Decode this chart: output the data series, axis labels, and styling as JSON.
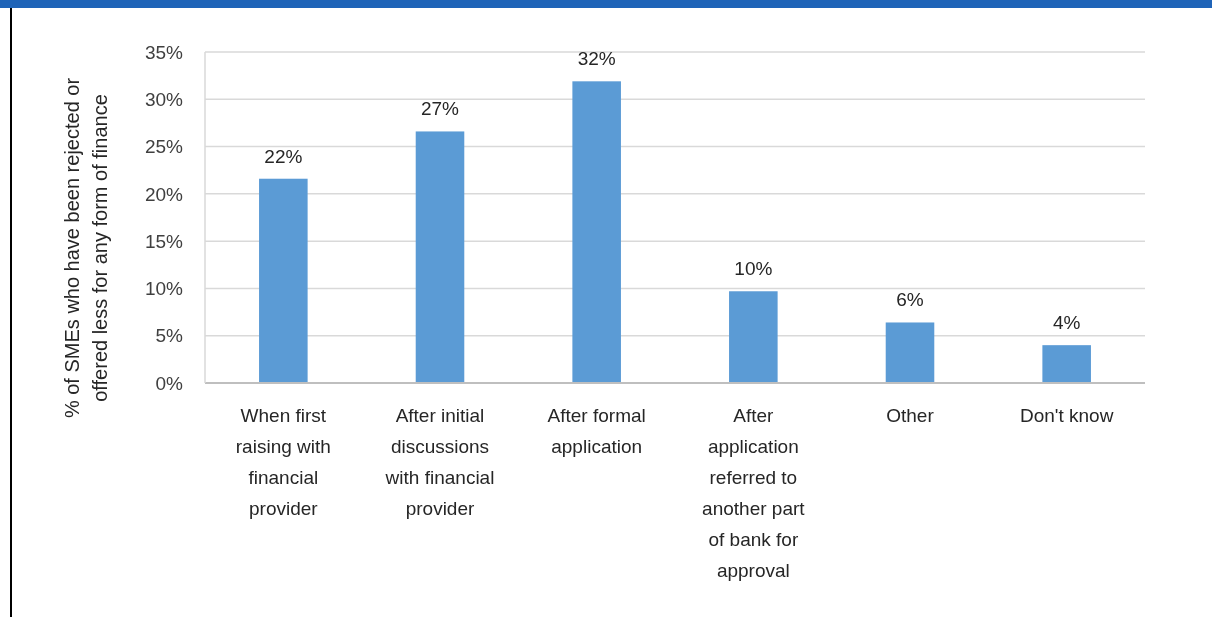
{
  "chart_data": {
    "type": "bar",
    "ylabel": "% of SMEs who have been rejected or offered less for any form of finance",
    "categories": [
      "When first raising with financial provider",
      "After initial discussions with financial provider",
      "After formal application",
      "After application referred to another part of bank for approval",
      "Other",
      "Don't know"
    ],
    "values": [
      21.6,
      26.6,
      31.9,
      9.7,
      6.4,
      4.0
    ],
    "value_labels": [
      "22%",
      "27%",
      "32%",
      "10%",
      "6%",
      "4%"
    ],
    "color": "#5b9bd5",
    "ylim": [
      0,
      35
    ],
    "yticks": [
      {
        "value": 0,
        "label": "0%"
      },
      {
        "value": 5,
        "label": "5%"
      },
      {
        "value": 10,
        "label": "10%"
      },
      {
        "value": 15,
        "label": "15%"
      },
      {
        "value": 20,
        "label": "20%"
      },
      {
        "value": 25,
        "label": "25%"
      },
      {
        "value": 30,
        "label": "30%"
      },
      {
        "value": 35,
        "label": "35%"
      }
    ],
    "grid": "y"
  }
}
